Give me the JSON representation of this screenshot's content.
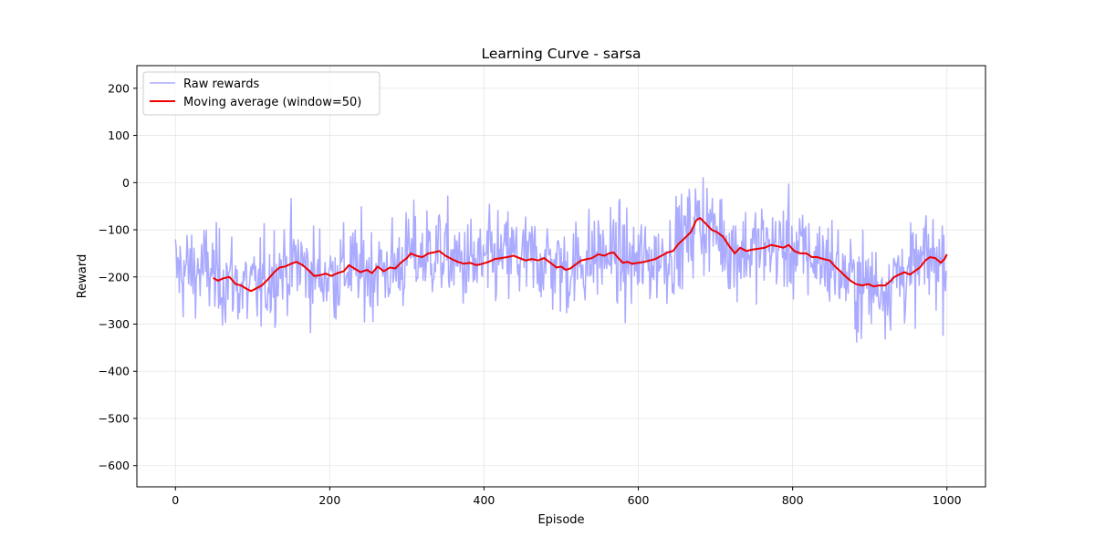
{
  "chart_data": {
    "type": "line",
    "title": "Learning Curve - sarsa",
    "xlabel": "Episode",
    "ylabel": "Reward",
    "xlim": [
      -50,
      1050
    ],
    "ylim": [
      -645,
      248
    ],
    "xticks": [
      0,
      200,
      400,
      600,
      800,
      1000
    ],
    "yticks": [
      -600,
      -500,
      -400,
      -300,
      -200,
      -100,
      0,
      100,
      200
    ],
    "grid": true,
    "legend_position": "top-left",
    "colors": {
      "raw": "#aaaaff",
      "moving_average": "#ee0000"
    },
    "series": [
      {
        "name": "Raw rewards",
        "color": "#aaaaff",
        "values": []
      },
      {
        "name": "Moving average (window=50)",
        "color": "#ee0000",
        "points": [
          [
            49,
            -202
          ],
          [
            55,
            -208
          ],
          [
            62,
            -203
          ],
          [
            70,
            -200
          ],
          [
            78,
            -215
          ],
          [
            85,
            -218
          ],
          [
            92,
            -225
          ],
          [
            98,
            -230
          ],
          [
            105,
            -224
          ],
          [
            112,
            -218
          ],
          [
            120,
            -205
          ],
          [
            128,
            -190
          ],
          [
            135,
            -180
          ],
          [
            142,
            -178
          ],
          [
            150,
            -172
          ],
          [
            157,
            -168
          ],
          [
            165,
            -175
          ],
          [
            172,
            -185
          ],
          [
            180,
            -198
          ],
          [
            188,
            -196
          ],
          [
            195,
            -193
          ],
          [
            202,
            -198
          ],
          [
            210,
            -192
          ],
          [
            218,
            -188
          ],
          [
            225,
            -175
          ],
          [
            232,
            -182
          ],
          [
            240,
            -190
          ],
          [
            248,
            -185
          ],
          [
            255,
            -192
          ],
          [
            262,
            -178
          ],
          [
            270,
            -188
          ],
          [
            278,
            -180
          ],
          [
            285,
            -182
          ],
          [
            292,
            -170
          ],
          [
            300,
            -160
          ],
          [
            305,
            -150
          ],
          [
            312,
            -155
          ],
          [
            320,
            -158
          ],
          [
            328,
            -150
          ],
          [
            335,
            -148
          ],
          [
            342,
            -145
          ],
          [
            350,
            -155
          ],
          [
            358,
            -162
          ],
          [
            366,
            -168
          ],
          [
            374,
            -172
          ],
          [
            382,
            -170
          ],
          [
            390,
            -175
          ],
          [
            398,
            -172
          ],
          [
            406,
            -168
          ],
          [
            414,
            -162
          ],
          [
            422,
            -160
          ],
          [
            430,
            -158
          ],
          [
            438,
            -155
          ],
          [
            446,
            -160
          ],
          [
            454,
            -165
          ],
          [
            462,
            -162
          ],
          [
            470,
            -165
          ],
          [
            478,
            -160
          ],
          [
            486,
            -170
          ],
          [
            494,
            -180
          ],
          [
            500,
            -178
          ],
          [
            506,
            -185
          ],
          [
            512,
            -182
          ],
          [
            520,
            -172
          ],
          [
            526,
            -165
          ],
          [
            534,
            -162
          ],
          [
            540,
            -160
          ],
          [
            548,
            -152
          ],
          [
            556,
            -155
          ],
          [
            562,
            -150
          ],
          [
            568,
            -148
          ],
          [
            574,
            -160
          ],
          [
            580,
            -170
          ],
          [
            586,
            -168
          ],
          [
            592,
            -172
          ],
          [
            600,
            -170
          ],
          [
            608,
            -168
          ],
          [
            615,
            -165
          ],
          [
            622,
            -162
          ],
          [
            630,
            -155
          ],
          [
            638,
            -148
          ],
          [
            645,
            -145
          ],
          [
            652,
            -130
          ],
          [
            660,
            -118
          ],
          [
            668,
            -105
          ],
          [
            675,
            -80
          ],
          [
            680,
            -75
          ],
          [
            688,
            -88
          ],
          [
            695,
            -100
          ],
          [
            702,
            -105
          ],
          [
            710,
            -115
          ],
          [
            718,
            -135
          ],
          [
            725,
            -150
          ],
          [
            732,
            -138
          ],
          [
            740,
            -145
          ],
          [
            748,
            -142
          ],
          [
            756,
            -140
          ],
          [
            764,
            -138
          ],
          [
            772,
            -132
          ],
          [
            780,
            -135
          ],
          [
            788,
            -138
          ],
          [
            795,
            -132
          ],
          [
            802,
            -145
          ],
          [
            810,
            -150
          ],
          [
            818,
            -150
          ],
          [
            825,
            -158
          ],
          [
            832,
            -158
          ],
          [
            840,
            -162
          ],
          [
            848,
            -165
          ],
          [
            855,
            -178
          ],
          [
            862,
            -188
          ],
          [
            868,
            -198
          ],
          [
            875,
            -208
          ],
          [
            882,
            -215
          ],
          [
            890,
            -218
          ],
          [
            898,
            -215
          ],
          [
            905,
            -220
          ],
          [
            912,
            -218
          ],
          [
            920,
            -218
          ],
          [
            926,
            -210
          ],
          [
            932,
            -200
          ],
          [
            938,
            -195
          ],
          [
            945,
            -190
          ],
          [
            952,
            -195
          ],
          [
            958,
            -188
          ],
          [
            965,
            -180
          ],
          [
            972,
            -165
          ],
          [
            978,
            -158
          ],
          [
            985,
            -160
          ],
          [
            992,
            -170
          ],
          [
            997,
            -162
          ],
          [
            1000,
            -152
          ]
        ]
      }
    ]
  }
}
